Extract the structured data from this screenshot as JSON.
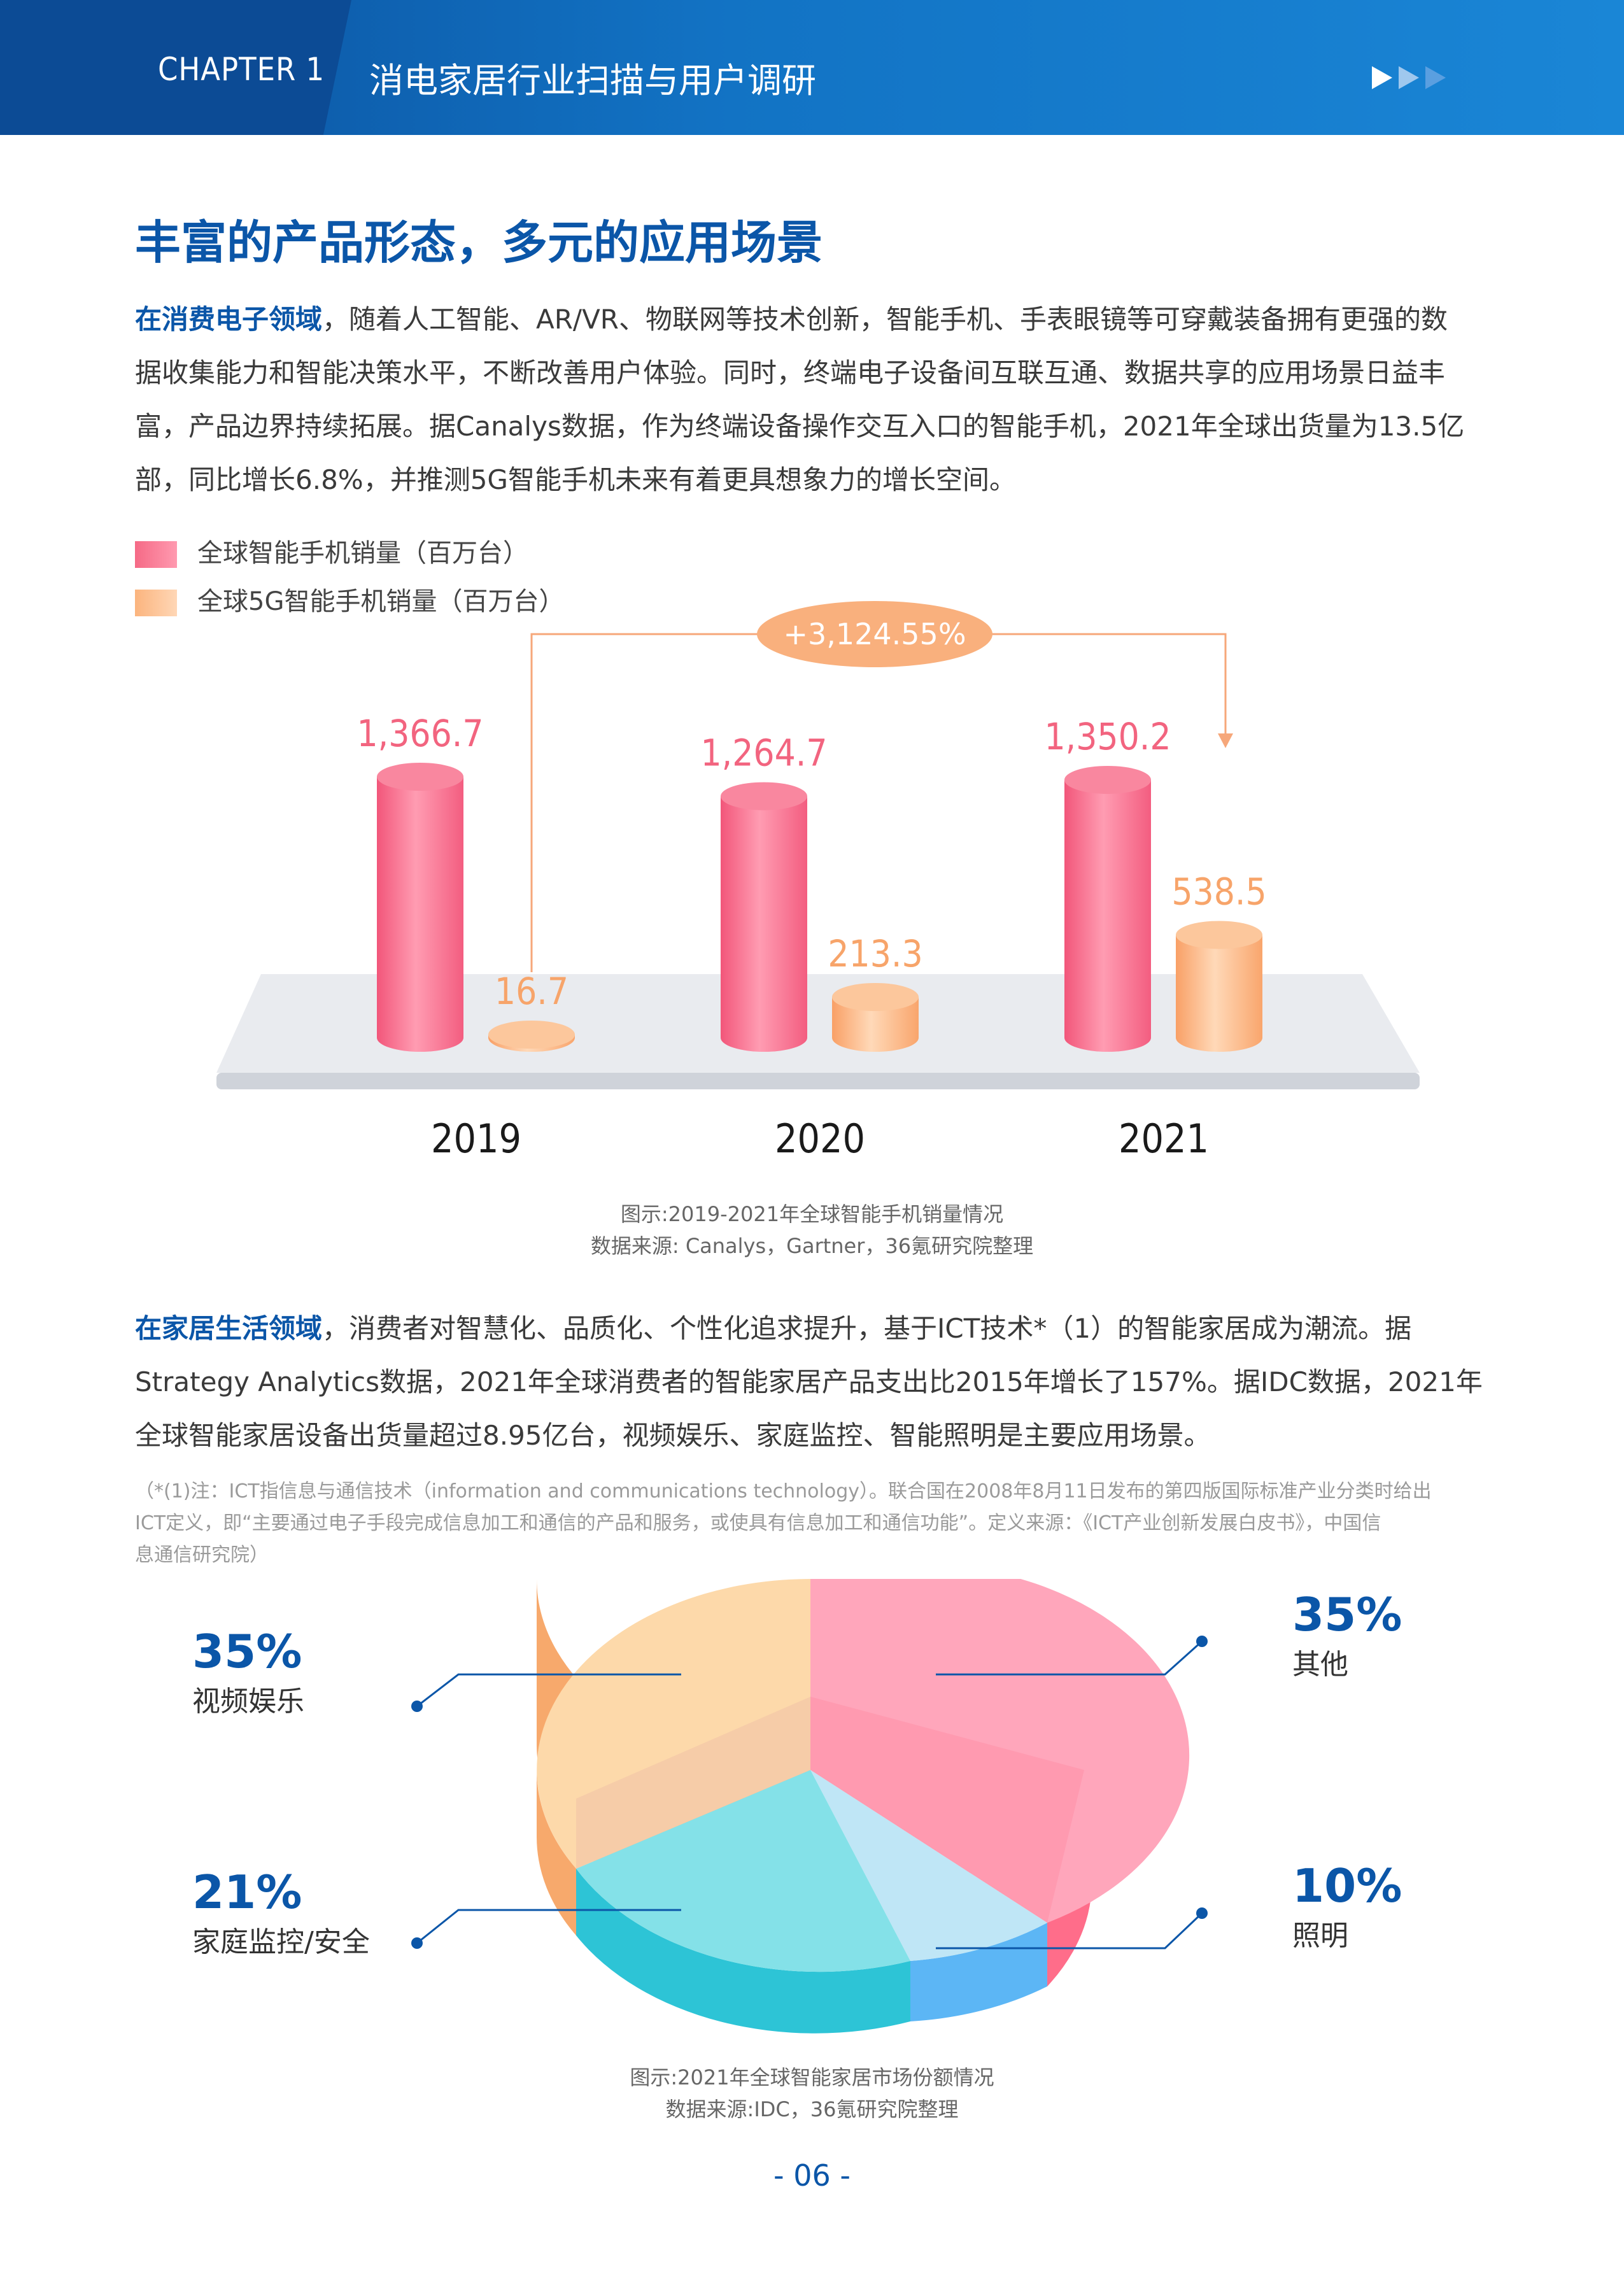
{
  "header": {
    "chapter": "CHAPTER 1",
    "title": "消电家居行业扫描与用户调研"
  },
  "section_title": "丰富的产品形态，多元的应用场景",
  "para1": {
    "lead": "在消费电子领域",
    "lines": [
      "，随着人工智能、AR/VR、物联网等技术创新，智能手机、手表眼镜等可穿戴装备拥有更强的数",
      "据收集能力和智能决策水平，不断改善用户体验。同时，终端电子设备间互联互通、数据共享的应用场景日益丰",
      "富，产品边界持续拓展。据Canalys数据，作为终端设备操作交互入口的智能手机，2021年全球出货量为13.5亿",
      "部，同比增长6.8%，并推测5G智能手机未来有着更具想象力的增长空间。"
    ]
  },
  "legend": {
    "series1": "全球智能手机销量（百万台）",
    "series2": "全球5G智能手机销量（百万台）"
  },
  "chart_data": [
    {
      "type": "bar",
      "categories": [
        "2019",
        "2020",
        "2021"
      ],
      "series": [
        {
          "name": "全球智能手机销量（百万台）",
          "values": [
            1366.7,
            1264.7,
            1350.2
          ],
          "labels": [
            "1,366.7",
            "1,264.7",
            "1,350.2"
          ],
          "color": "#f56a86"
        },
        {
          "name": "全球5G智能手机销量（百万台）",
          "values": [
            16.7,
            213.3,
            538.5
          ],
          "labels": [
            "16.7",
            "213.3",
            "538.5"
          ],
          "color": "#fbb47e"
        }
      ],
      "annotation": "+3,124.55%",
      "caption": "图示:2019-2021年全球智能手机销量情况",
      "source": "数据来源: Canalys，Gartner，36氪研究院整理"
    },
    {
      "type": "pie",
      "slices": [
        {
          "label": "其他",
          "value": 35,
          "pct": "35%",
          "color": "#f7a1b6"
        },
        {
          "label": "照明",
          "value": 10,
          "pct": "10%",
          "color": "#b5e3f2"
        },
        {
          "label": "家庭监控/安全",
          "value": 21,
          "pct": "21%",
          "color": "#82dfe6"
        },
        {
          "label": "视频娱乐",
          "value": 35,
          "pct": "35%",
          "color": "#fcd6a8"
        }
      ],
      "caption": "图示:2021年全球智能家居市场份额情况",
      "source": "数据来源:IDC，36氪研究院整理"
    }
  ],
  "para2": {
    "lead": "在家居生活领域",
    "lines": [
      "，消费者对智慧化、品质化、个性化追求提升，基于ICT技术*（1）的智能家居成为潮流。据",
      "Strategy Analytics数据，2021年全球消费者的智能家居产品支出比2015年增长了157%。据IDC数据，2021年",
      "全球智能家居设备出货量超过8.95亿台，视频娱乐、家庭监控、智能照明是主要应用场景。"
    ]
  },
  "note_lines": [
    "（*(1)注：ICT指信息与通信技术（information and communications technology）。联合国在2008年8月11日发布的第四版国际标准产业分类时给出",
    "ICT定义，即“主要通过电子手段完成信息加工和通信的产品和服务，或使具有信息加工和通信功能”。定义来源：《ICT产业创新发展白皮书》，中国信",
    "息通信研究院）"
  ],
  "page_number": "- 06 -",
  "colors": {
    "brand_blue": "#0b56a8",
    "pink": "#f56a86",
    "orange": "#fbb47e"
  }
}
